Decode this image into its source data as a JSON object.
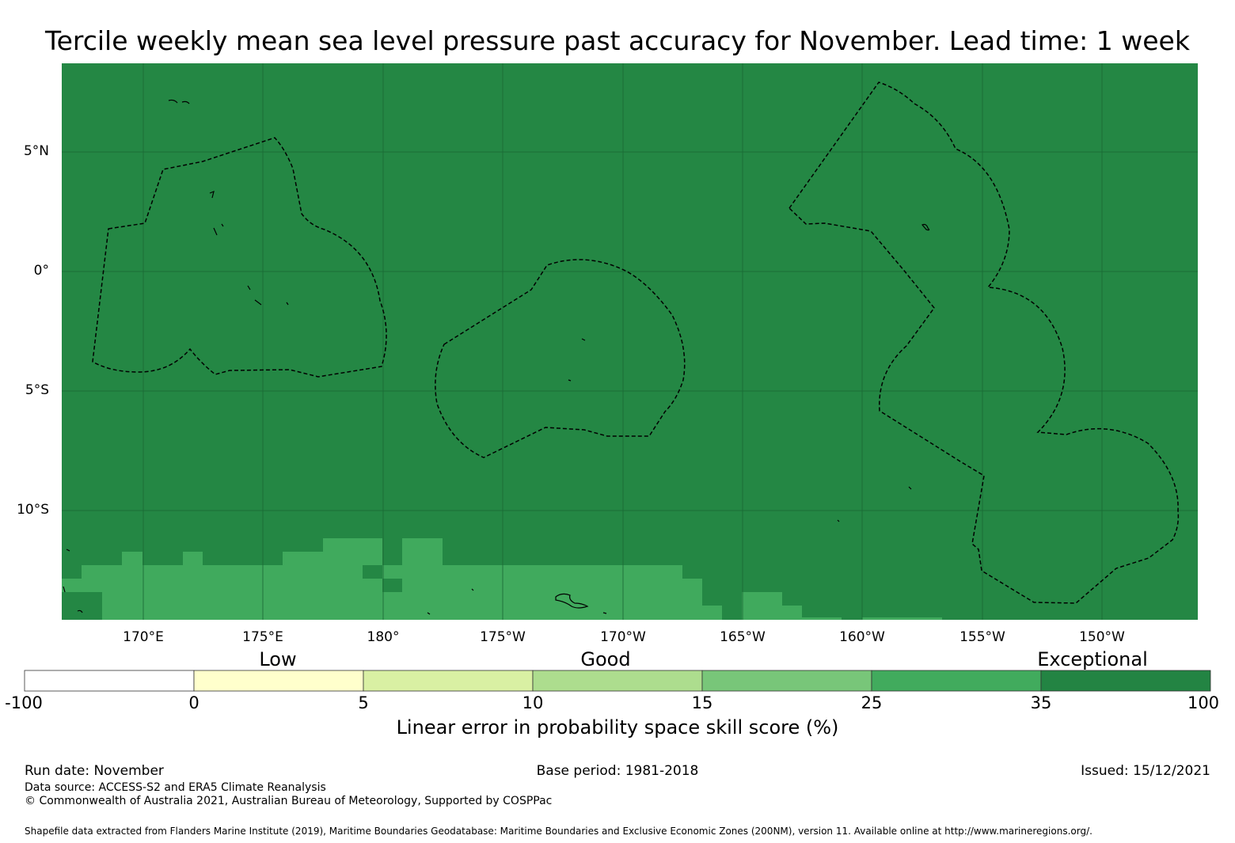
{
  "title": "Tercile weekly mean sea level pressure past accuracy for November. Lead time: 1 week",
  "map": {
    "lat_labels": [
      "5°N",
      "0°",
      "5°S",
      "10°S"
    ],
    "lon_labels": [
      "170°E",
      "175°E",
      "180°",
      "175°W",
      "170°W",
      "165°W",
      "160°W",
      "155°W",
      "150°W"
    ],
    "background_color": "#248744",
    "band_color": "#40aa5d",
    "gridline_color": "#1a6633"
  },
  "colorbar": {
    "categories": [
      "Low",
      "Good",
      "Exceptional"
    ],
    "ticks": [
      "-100",
      "0",
      "5",
      "10",
      "15",
      "25",
      "35",
      "100"
    ],
    "colors": [
      "#ffffff",
      "#ffffcc",
      "#d9f0a3",
      "#addd8e",
      "#78c679",
      "#41ab5d",
      "#238443"
    ],
    "title": "Linear error in probability space skill score (%)"
  },
  "footer": {
    "run_date": "Run date: November",
    "base_period": "Base period: 1981-2018",
    "issued": "Issued: 15/12/2021",
    "data_source": "Data source: ACCESS-S2 and ERA5 Climate Reanalysis",
    "copyright": "© Commonwealth of Australia 2021, Australian Bureau of Meteorology, Supported by COSPPac",
    "shapefile": "Shapefile data extracted from Flanders Marine Institute (2019), Maritime Boundaries Geodatabase: Maritime Boundaries and Exclusive Economic Zones (200NM), version 11. Available online at http://www.marineregions.org/."
  }
}
